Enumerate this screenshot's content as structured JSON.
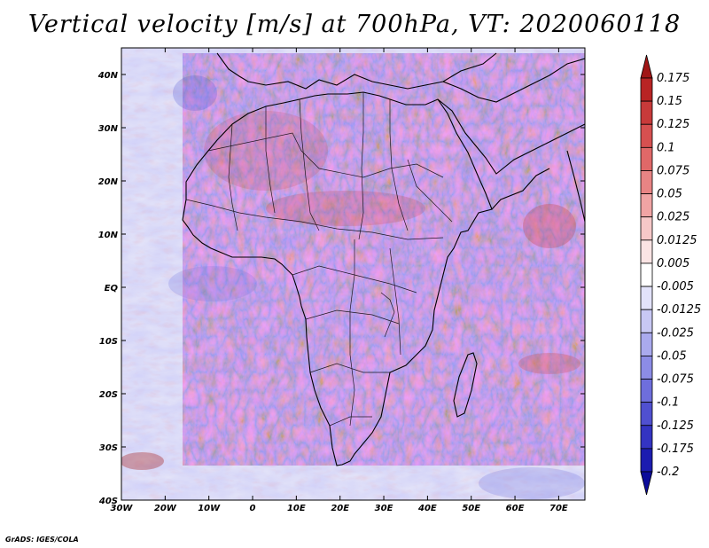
{
  "title": "Vertical velocity [m/s] at 700hPa, VT: 2020060118",
  "map": {
    "lat_labels": [
      "40N",
      "30N",
      "20N",
      "10N",
      "EQ",
      "10S",
      "20S",
      "30S",
      "40S"
    ],
    "lon_labels": [
      "30W",
      "20W",
      "10W",
      "0",
      "10E",
      "20E",
      "30E",
      "40E",
      "50E",
      "60E",
      "70E"
    ],
    "lat_range": [
      -40,
      45
    ],
    "lon_range": [
      -30,
      76
    ]
  },
  "colorbar": {
    "levels": [
      "0.175",
      "0.15",
      "0.125",
      "0.1",
      "0.075",
      "0.05",
      "0.025",
      "0.0125",
      "0.005",
      "-0.005",
      "-0.0125",
      "-0.025",
      "-0.05",
      "-0.075",
      "-0.1",
      "-0.125",
      "-0.175",
      "-0.2"
    ],
    "colors": [
      "#a01616",
      "#b82424",
      "#c83a3a",
      "#d65050",
      "#e06868",
      "#e88484",
      "#f0a4a4",
      "#f6c8c8",
      "#fbe4e4",
      "#ffffff",
      "#e2e2fa",
      "#c8c8f4",
      "#aaaaee",
      "#8c8ce6",
      "#6e6edc",
      "#5050d0",
      "#3434c2",
      "#1c1cb0",
      "#0c0c9a"
    ]
  },
  "credit": "GrADS: IGES/COLA"
}
